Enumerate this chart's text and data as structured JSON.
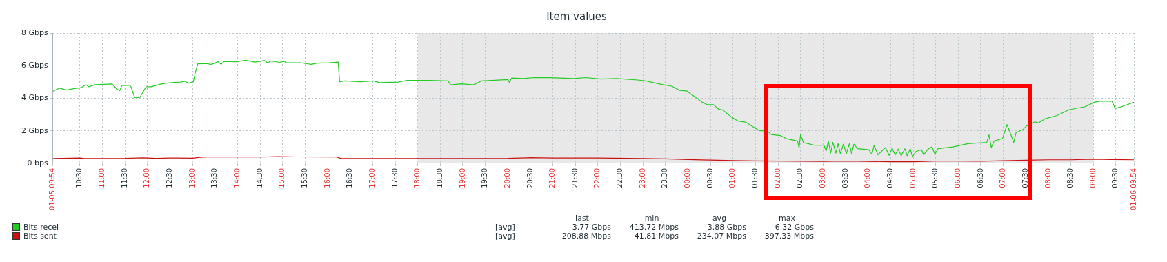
{
  "chart_data": {
    "type": "line",
    "title": "Item values",
    "xlim": [
      "--01-05T09:54",
      "--01-06T09:54"
    ],
    "xticks": [
      {
        "value": "--01-05T09:54",
        "label": "01-05 09:54"
      },
      {
        "value": "--01-05T10:30",
        "label": "10:30"
      },
      {
        "value": "--01-05T11:00",
        "label": "11:00"
      },
      {
        "value": "--01-05T11:30",
        "label": "11:30"
      },
      {
        "value": "--01-05T12:00",
        "label": "12:00"
      },
      {
        "value": "--01-05T12:30",
        "label": "12:30"
      },
      {
        "value": "--01-05T13:00",
        "label": "13:00"
      },
      {
        "value": "--01-05T13:30",
        "label": "13:30"
      },
      {
        "value": "--01-05T14:00",
        "label": "14:00"
      },
      {
        "value": "--01-05T14:30",
        "label": "14:30"
      },
      {
        "value": "--01-05T15:00",
        "label": "15:00"
      },
      {
        "value": "--01-05T15:30",
        "label": "15:30"
      },
      {
        "value": "--01-05T16:00",
        "label": "16:00"
      },
      {
        "value": "--01-05T16:30",
        "label": "16:30"
      },
      {
        "value": "--01-05T17:00",
        "label": "17:00"
      },
      {
        "value": "--01-05T17:30",
        "label": "17:30"
      },
      {
        "value": "--01-05T18:00",
        "label": "18:00"
      },
      {
        "value": "--01-05T18:30",
        "label": "18:30"
      },
      {
        "value": "--01-05T19:00",
        "label": "19:00"
      },
      {
        "value": "--01-05T19:30",
        "label": "19:30"
      },
      {
        "value": "--01-05T20:00",
        "label": "20:00"
      },
      {
        "value": "--01-05T20:30",
        "label": "20:30"
      },
      {
        "value": "--01-05T21:00",
        "label": "21:00"
      },
      {
        "value": "--01-05T21:30",
        "label": "21:30"
      },
      {
        "value": "--01-05T22:00",
        "label": "22:00"
      },
      {
        "value": "--01-05T22:30",
        "label": "22:30"
      },
      {
        "value": "--01-05T23:00",
        "label": "23:00"
      },
      {
        "value": "--01-05T23:30",
        "label": "23:30"
      },
      {
        "value": "--01-06T00:00",
        "label": "00:00"
      },
      {
        "value": "--01-06T00:30",
        "label": "00:30"
      },
      {
        "value": "--01-06T01:00",
        "label": "01:00"
      },
      {
        "value": "--01-06T01:30",
        "label": "01:30"
      },
      {
        "value": "--01-06T02:00",
        "label": "02:00"
      },
      {
        "value": "--01-06T02:30",
        "label": "02:30"
      },
      {
        "value": "--01-06T03:00",
        "label": "03:00"
      },
      {
        "value": "--01-06T03:30",
        "label": "03:30"
      },
      {
        "value": "--01-06T04:00",
        "label": "04:00"
      },
      {
        "value": "--01-06T04:30",
        "label": "04:30"
      },
      {
        "value": "--01-06T05:00",
        "label": "05:00"
      },
      {
        "value": "--01-06T05:30",
        "label": "05:30"
      },
      {
        "value": "--01-06T06:00",
        "label": "06:00"
      },
      {
        "value": "--01-06T06:30",
        "label": "06:30"
      },
      {
        "value": "--01-06T07:00",
        "label": "07:00"
      },
      {
        "value": "--01-06T07:30",
        "label": "07:30"
      },
      {
        "value": "--01-06T08:00",
        "label": "08:00"
      },
      {
        "value": "--01-06T08:30",
        "label": "08:30"
      },
      {
        "value": "--01-06T09:00",
        "label": "09:00"
      },
      {
        "value": "--01-06T09:30",
        "label": "09:30"
      },
      {
        "value": "--01-06T09:54",
        "label": "01-06 09:54"
      }
    ],
    "ylim": [
      0,
      8
    ],
    "yticks": [
      {
        "value": 0,
        "label": "0 bps"
      },
      {
        "value": 2,
        "label": "2 Gbps"
      },
      {
        "value": 4,
        "label": "4 Gbps"
      },
      {
        "value": 6,
        "label": "6 Gbps"
      },
      {
        "value": 8,
        "label": "8 Gbps"
      }
    ],
    "grid": true,
    "legend": "bottom left",
    "bands": [
      {
        "axis": "x",
        "from": "--01-05T18:00",
        "to": "--01-06T09:00",
        "color": "#e8e8e8"
      }
    ],
    "annotations": [
      "last",
      "min",
      "avg",
      "max",
      "[avg]",
      "3.77 Gbps",
      "413.72 Mbps",
      "3.88 Gbps",
      "6.32 Gbps",
      "[avg]",
      "208.88 Mbps",
      "41.81 Mbps",
      "234.07 Mbps",
      "397.33 Mbps"
    ],
    "series": [
      {
        "name": "Bits recei",
        "color": "#22cc22",
        "x": [
          "--01-05T09:54",
          "--01-05T10:03",
          "--01-05T10:12",
          "--01-05T10:23",
          "--01-05T10:32",
          "--01-05T10:38",
          "--01-05T10:42",
          "--01-05T10:50",
          "--01-05T11:13",
          "--01-05T11:19",
          "--01-05T11:23",
          "--01-05T11:26",
          "--01-05T11:36",
          "--01-05T11:38",
          "--01-05T11:43",
          "--01-05T11:50",
          "--01-05T11:58",
          "--01-05T12:05",
          "--01-05T12:19",
          "--01-05T12:32",
          "--01-05T12:44",
          "--01-05T12:50",
          "--01-05T12:55",
          "--01-05T13:01",
          "--01-05T13:04",
          "--01-05T13:07",
          "--01-05T13:17",
          "--01-05T13:25",
          "--01-05T13:34",
          "--01-05T13:38",
          "--01-05T13:42",
          "--01-05T13:59",
          "--01-05T14:11",
          "--01-05T14:23",
          "--01-05T14:36",
          "--01-05T14:40",
          "--01-05T14:44",
          "--01-05T14:56",
          "--01-05T15:02",
          "--01-05T15:05",
          "--01-05T15:25",
          "--01-05T15:38",
          "--01-05T15:46",
          "--01-05T16:02",
          "--01-05T16:14",
          "--01-05T16:16",
          "--01-05T16:23",
          "--01-05T16:44",
          "--01-05T17:01",
          "--01-05T17:09",
          "--01-05T17:34",
          "--01-05T17:46",
          "--01-05T18:15",
          "--01-05T18:40",
          "--01-05T18:44",
          "--01-05T18:58",
          "--01-05T19:14",
          "--01-05T19:25",
          "--01-05T20:00",
          "--01-05T20:02",
          "--01-05T20:05",
          "--01-05T20:21",
          "--01-05T20:35",
          "--01-05T20:56",
          "--01-05T21:28",
          "--01-05T21:44",
          "--01-05T22:04",
          "--01-05T22:25",
          "--01-05T22:53",
          "--01-05T23:04",
          "--01-05T23:21",
          "--01-05T23:39",
          "--01-05T23:49",
          "--01-05T23:58",
          "--01-06T00:07",
          "--01-06T00:19",
          "--01-06T00:26",
          "--01-06T00:34",
          "--01-06T00:41",
          "--01-06T00:46",
          "--01-06T00:58",
          "--01-06T01:07",
          "--01-06T01:17",
          "--01-06T01:25",
          "--01-06T01:35",
          "--01-06T01:46",
          "--01-06T01:51",
          "--01-06T02:03",
          "--01-06T02:11",
          "--01-06T02:20",
          "--01-06T02:26",
          "--01-06T02:28",
          "--01-06T02:30",
          "--01-06T02:34",
          "--01-06T02:36",
          "--01-06T02:49",
          "--01-06T03:01",
          "--01-06T03:04",
          "--01-06T03:07",
          "--01-06T03:10",
          "--01-06T03:13",
          "--01-06T03:17",
          "--01-06T03:20",
          "--01-06T03:23",
          "--01-06T03:27",
          "--01-06T03:31",
          "--01-06T03:35",
          "--01-06T03:38",
          "--01-06T03:41",
          "--01-06T03:46",
          "--01-06T04:01",
          "--01-06T04:05",
          "--01-06T04:08",
          "--01-06T04:13",
          "--01-06T04:23",
          "--01-06T04:28",
          "--01-06T04:32",
          "--01-06T04:36",
          "--01-06T04:40",
          "--01-06T04:44",
          "--01-06T04:49",
          "--01-06T04:52",
          "--01-06T04:56",
          "--01-06T04:59",
          "--01-06T05:04",
          "--01-06T05:11",
          "--01-06T05:14",
          "--01-06T05:19",
          "--01-06T05:25",
          "--01-06T05:29",
          "--01-06T05:33",
          "--01-06T05:53",
          "--01-06T06:13",
          "--01-06T06:38",
          "--01-06T06:41",
          "--01-06T06:44",
          "--01-06T06:48",
          "--01-06T06:59",
          "--01-06T07:05",
          "--01-06T07:10",
          "--01-06T07:14",
          "--01-06T07:17",
          "--01-06T07:26",
          "--01-06T07:31",
          "--01-06T07:42",
          "--01-06T07:47",
          "--01-06T07:56",
          "--01-06T08:11",
          "--01-06T08:28",
          "--01-06T08:49",
          "--01-06T09:01",
          "--01-06T09:08",
          "--01-06T09:25",
          "--01-06T09:29",
          "--01-06T09:35",
          "--01-06T09:54"
        ],
        "values": [
          4.42,
          4.62,
          4.5,
          4.6,
          4.65,
          4.83,
          4.7,
          4.83,
          4.87,
          4.56,
          4.47,
          4.78,
          4.8,
          4.7,
          4.03,
          4.06,
          4.7,
          4.7,
          4.88,
          4.96,
          4.99,
          5.04,
          4.92,
          5.01,
          5.63,
          6.11,
          6.13,
          6.08,
          6.24,
          6.08,
          6.26,
          6.24,
          6.33,
          6.22,
          6.31,
          6.17,
          6.29,
          6.2,
          6.26,
          6.19,
          6.17,
          6.08,
          6.15,
          6.17,
          6.22,
          5.01,
          5.06,
          5.01,
          5.06,
          4.96,
          4.99,
          5.1,
          5.1,
          5.06,
          4.82,
          4.88,
          4.82,
          5.06,
          5.15,
          4.97,
          5.24,
          5.21,
          5.27,
          5.26,
          5.21,
          5.27,
          5.18,
          5.21,
          5.12,
          5.06,
          4.88,
          4.73,
          4.48,
          4.45,
          4.16,
          3.75,
          3.6,
          3.6,
          3.32,
          3.29,
          2.84,
          2.59,
          2.53,
          2.29,
          2.01,
          1.98,
          1.77,
          1.71,
          1.52,
          1.43,
          1.37,
          0.96,
          1.77,
          1.25,
          1.25,
          1.11,
          1.11,
          0.77,
          1.36,
          0.63,
          1.29,
          0.63,
          1.21,
          0.6,
          1.18,
          0.6,
          1.21,
          0.6,
          1.18,
          0.9,
          0.84,
          0.56,
          1.11,
          0.52,
          0.97,
          0.49,
          0.93,
          0.52,
          0.88,
          0.47,
          0.9,
          0.47,
          0.9,
          0.42,
          0.74,
          0.84,
          0.52,
          0.84,
          1.01,
          0.56,
          0.9,
          1.01,
          1.21,
          1.29,
          1.75,
          0.97,
          1.38,
          1.52,
          2.38,
          1.79,
          1.29,
          1.89,
          2.07,
          2.3,
          2.55,
          2.48,
          2.75,
          2.93,
          3.3,
          3.48,
          3.75,
          3.81,
          3.81,
          3.37,
          3.44,
          3.75
        ]
      },
      {
        "name": "Bits sent",
        "color": "#cc1111",
        "x": [
          "--01-05T09:54",
          "--01-05T10:30",
          "--01-05T10:36",
          "--01-05T11:30",
          "--01-05T11:54",
          "--01-05T12:12",
          "--01-05T12:30",
          "--01-05T13:00",
          "--01-05T13:12",
          "--01-05T13:30",
          "--01-05T14:30",
          "--01-05T14:54",
          "--01-05T15:18",
          "--01-05T16:12",
          "--01-05T16:18",
          "--01-05T17:00",
          "--01-05T18:00",
          "--01-05T18:42",
          "--01-05T20:00",
          "--01-05T20:30",
          "--01-05T21:00",
          "--01-05T22:00",
          "--01-05T23:00",
          "--01-05T23:30",
          "--01-06T00:00",
          "--01-06T00:30",
          "--01-06T01:00",
          "--01-06T01:30",
          "--01-06T02:00",
          "--01-06T02:30",
          "--01-06T03:00",
          "--01-06T03:30",
          "--01-06T04:00",
          "--01-06T04:30",
          "--01-06T05:00",
          "--01-06T05:30",
          "--01-06T06:00",
          "--01-06T06:30",
          "--01-06T07:00",
          "--01-06T07:30",
          "--01-06T08:00",
          "--01-06T08:30",
          "--01-06T09:00",
          "--01-06T09:24",
          "--01-06T09:54"
        ],
        "values": [
          0.3,
          0.33,
          0.3,
          0.31,
          0.34,
          0.31,
          0.33,
          0.32,
          0.38,
          0.4,
          0.39,
          0.42,
          0.4,
          0.39,
          0.3,
          0.3,
          0.3,
          0.3,
          0.31,
          0.35,
          0.33,
          0.33,
          0.3,
          0.28,
          0.24,
          0.2,
          0.17,
          0.15,
          0.14,
          0.13,
          0.12,
          0.14,
          0.12,
          0.1,
          0.1,
          0.14,
          0.14,
          0.13,
          0.16,
          0.19,
          0.22,
          0.22,
          0.26,
          0.24,
          0.22
        ]
      }
    ]
  }
}
